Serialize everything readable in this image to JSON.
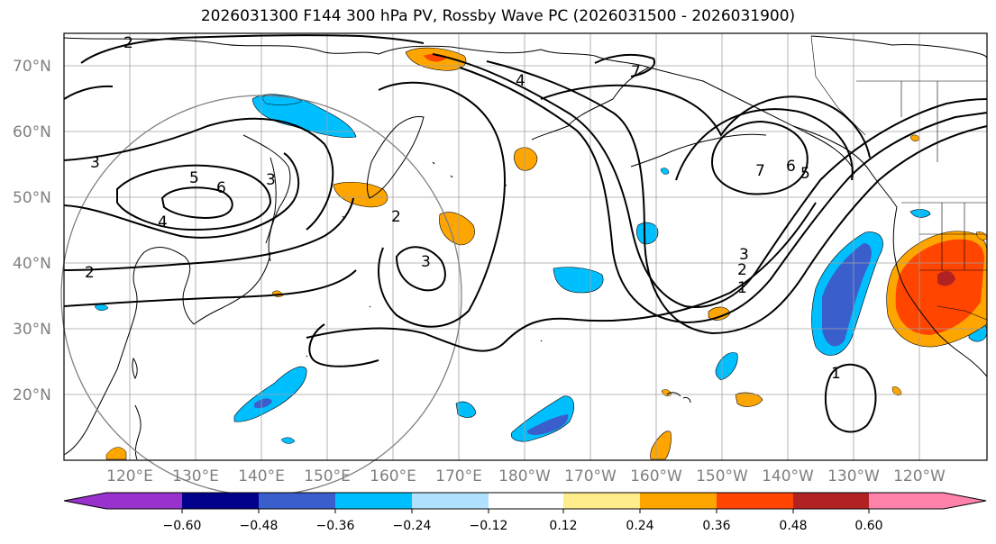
{
  "title": "2026031300 F144 300 hPa PV, Rossby Wave PC (2026031500 - 2026031900)",
  "lat_ticks": [
    "70°N",
    "60°N",
    "50°N",
    "40°N",
    "30°N",
    "20°N"
  ],
  "lon_ticks": [
    "120°E",
    "130°E",
    "140°E",
    "150°E",
    "160°E",
    "170°E",
    "180°W",
    "170°W",
    "160°W",
    "150°W",
    "140°W",
    "130°W",
    "120°W"
  ],
  "colorbar": {
    "colors": [
      "#9932cc",
      "#00008b",
      "#3a5fcd",
      "#00bfff",
      "#b0e2ff",
      "#ffffff",
      "#ffec8b",
      "#ffa500",
      "#ff4500",
      "#b22222",
      "#ff82ab"
    ],
    "labels": [
      "−0.60",
      "−0.48",
      "−0.36",
      "−0.24",
      "−0.12",
      "0.12",
      "0.24",
      "0.36",
      "0.48",
      "0.60"
    ]
  },
  "contour_labels": [
    "2",
    "3",
    "5",
    "6",
    "4",
    "2",
    "3",
    "2",
    "3",
    "4",
    "7",
    "7",
    "6",
    "5",
    "3",
    "2",
    "1",
    "1"
  ],
  "colors": {
    "frame": "#000000",
    "grid": "#a0a0a0",
    "coast": "#000000",
    "circle": "#808080"
  }
}
